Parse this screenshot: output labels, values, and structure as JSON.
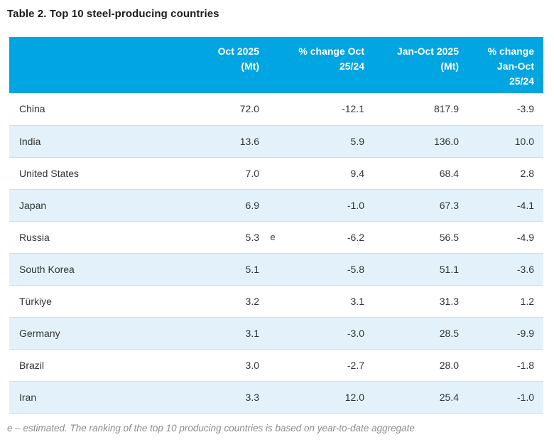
{
  "title": "Table 2. Top 10 steel-producing countries",
  "display": {
    "headers": {
      "country": "",
      "oct": "Oct 2025\n(Mt)",
      "marker": "",
      "pct_oct": "% change Oct\n25/24",
      "jan_oct": "Jan-Oct 2025\n(Mt)",
      "pct_jan_oct": "% change\nJan-Oct\n25/24"
    }
  },
  "colors": {
    "header_bg": "#00a5e1",
    "header_text": "#ffffff",
    "stripe_row_bg": "#e3f2fa",
    "row_border": "#d9d9d9",
    "body_text": "#333333",
    "title_text": "#1c1c1c",
    "footnote_text": "#8c8c8c"
  },
  "chart_data": {
    "type": "table",
    "title": "Table 2. Top 10 steel-producing countries",
    "columns": [
      "",
      "Oct 2025 (Mt)",
      "% change Oct 25/24",
      "Jan-Oct 2025 (Mt)",
      "% change Jan-Oct 25/24"
    ],
    "rows": [
      {
        "country": "China",
        "oct_2025_mt": "72.0",
        "marker": "",
        "pct_change_oct": "-12.1",
        "jan_oct_2025_mt": "817.9",
        "pct_change_jan_oct": "-3.9"
      },
      {
        "country": "India",
        "oct_2025_mt": "13.6",
        "marker": "",
        "pct_change_oct": "5.9",
        "jan_oct_2025_mt": "136.0",
        "pct_change_jan_oct": "10.0"
      },
      {
        "country": "United States",
        "oct_2025_mt": "7.0",
        "marker": "",
        "pct_change_oct": "9.4",
        "jan_oct_2025_mt": "68.4",
        "pct_change_jan_oct": "2.8"
      },
      {
        "country": "Japan",
        "oct_2025_mt": "6.9",
        "marker": "",
        "pct_change_oct": "-1.0",
        "jan_oct_2025_mt": "67.3",
        "pct_change_jan_oct": "-4.1"
      },
      {
        "country": "Russia",
        "oct_2025_mt": "5.3",
        "marker": "e",
        "pct_change_oct": "-6.2",
        "jan_oct_2025_mt": "56.5",
        "pct_change_jan_oct": "-4.9"
      },
      {
        "country": "South Korea",
        "oct_2025_mt": "5.1",
        "marker": "",
        "pct_change_oct": "-5.8",
        "jan_oct_2025_mt": "51.1",
        "pct_change_jan_oct": "-3.6"
      },
      {
        "country": "Türkiye",
        "oct_2025_mt": "3.2",
        "marker": "",
        "pct_change_oct": "3.1",
        "jan_oct_2025_mt": "31.3",
        "pct_change_jan_oct": "1.2"
      },
      {
        "country": "Germany",
        "oct_2025_mt": "3.1",
        "marker": "",
        "pct_change_oct": "-3.0",
        "jan_oct_2025_mt": "28.5",
        "pct_change_jan_oct": "-9.9"
      },
      {
        "country": "Brazil",
        "oct_2025_mt": "3.0",
        "marker": "",
        "pct_change_oct": "-2.7",
        "jan_oct_2025_mt": "28.0",
        "pct_change_jan_oct": "-1.8"
      },
      {
        "country": "Iran",
        "oct_2025_mt": "3.3",
        "marker": "",
        "pct_change_oct": "12.0",
        "jan_oct_2025_mt": "25.4",
        "pct_change_jan_oct": "-1.0"
      }
    ],
    "footnote": "e – estimated. The ranking of the top 10 producing countries is based on year-to-date aggregate"
  }
}
